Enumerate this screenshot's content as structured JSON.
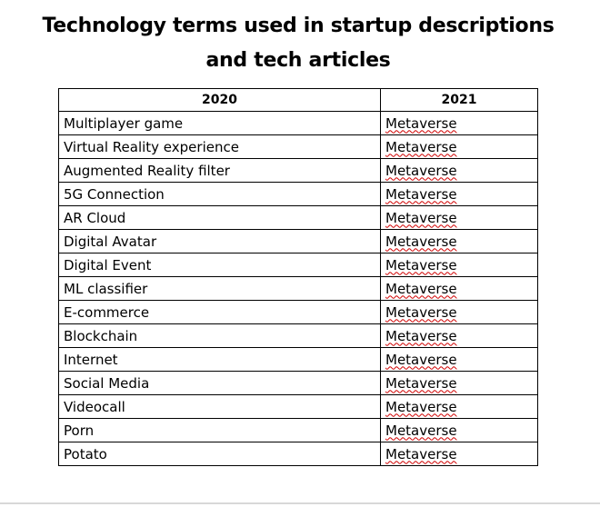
{
  "title": {
    "line1": "Technology terms used in startup descriptions",
    "line2": "and tech articles"
  },
  "table": {
    "headers": [
      "2020",
      "2021"
    ],
    "rows": [
      {
        "y2020": "Multiplayer game",
        "y2021": "Metaverse"
      },
      {
        "y2020": "Virtual Reality experience",
        "y2021": "Metaverse"
      },
      {
        "y2020": "Augmented Reality filter",
        "y2021": "Metaverse"
      },
      {
        "y2020": "5G Connection",
        "y2021": "Metaverse"
      },
      {
        "y2020": "AR Cloud",
        "y2021": "Metaverse"
      },
      {
        "y2020": "Digital Avatar",
        "y2021": "Metaverse"
      },
      {
        "y2020": "Digital Event",
        "y2021": "Metaverse"
      },
      {
        "y2020": "ML classifier",
        "y2021": "Metaverse"
      },
      {
        "y2020": "E-commerce",
        "y2021": "Metaverse"
      },
      {
        "y2020": "Blockchain",
        "y2021": "Metaverse"
      },
      {
        "y2020": "Internet",
        "y2021": "Metaverse"
      },
      {
        "y2020": "Social Media",
        "y2021": "Metaverse"
      },
      {
        "y2020": "Videocall",
        "y2021": "Metaverse"
      },
      {
        "y2020": "Porn",
        "y2021": "Metaverse"
      },
      {
        "y2020": "Potato",
        "y2021": "Metaverse"
      }
    ]
  },
  "colors": {
    "text": "#000000",
    "border": "#000000",
    "spellcheck_underline": "#d00000"
  }
}
